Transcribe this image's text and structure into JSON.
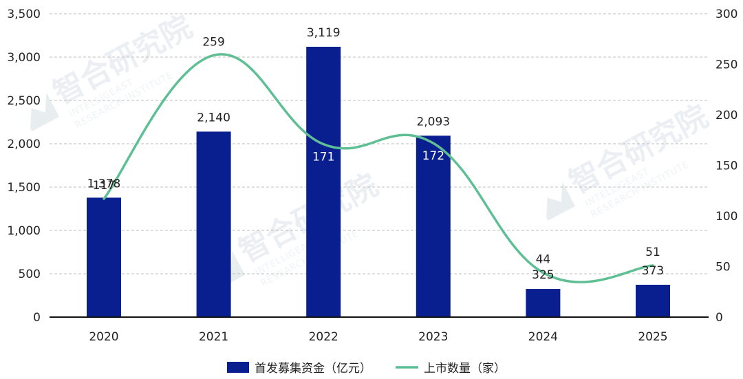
{
  "chart_data": {
    "type": "bar+line",
    "categories": [
      "2020",
      "2021",
      "2022",
      "2023",
      "2024",
      "2025"
    ],
    "series": [
      {
        "name": "首发募集资金（亿元）",
        "type": "bar",
        "axis": "left",
        "color": "#0a1f8f",
        "values": [
          1378,
          2140,
          3119,
          2093,
          325,
          373
        ],
        "labels": [
          "1,378",
          "2,140",
          "3,119",
          "2,093",
          "325",
          "373"
        ]
      },
      {
        "name": "上市数量（家）",
        "type": "line",
        "axis": "right",
        "color": "#5fbf94",
        "values": [
          117,
          259,
          171,
          172,
          44,
          51
        ],
        "labels": [
          "117",
          "259",
          "171",
          "172",
          "44",
          "51"
        ]
      }
    ],
    "y_left": {
      "min": 0,
      "max": 3500,
      "ticks": [
        "0",
        "500",
        "1,000",
        "1,500",
        "2,000",
        "2,500",
        "3,000",
        "3,500"
      ]
    },
    "y_right": {
      "min": 0,
      "max": 300,
      "ticks": [
        "0",
        "50",
        "100",
        "150",
        "200",
        "250",
        "300"
      ]
    },
    "grid": true,
    "legend_position": "bottom",
    "watermark": {
      "cn": "智合研究院",
      "en1": "INTELLIGEAST",
      "en2": "RESEARCH INSTITUTE"
    }
  }
}
